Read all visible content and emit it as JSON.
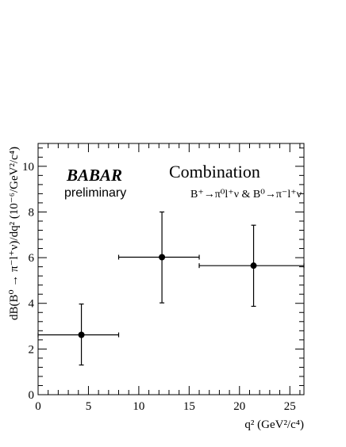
{
  "chart_data": {
    "type": "scatter",
    "logo": "BABAR",
    "subtitle": "preliminary",
    "title": "Combination",
    "process_label": "B⁺→π⁰l⁺ν & B⁰→π⁻l⁺ν",
    "xlabel": "q² (GeV²/c⁴)",
    "ylabel": "dB(B⁰ → π⁻l⁺ν)/dq² (10⁻⁶/GeV²/c⁴)",
    "xlim": [
      0,
      26.4
    ],
    "ylim": [
      0,
      11
    ],
    "x_major_ticks": [
      0,
      5,
      10,
      15,
      20,
      25
    ],
    "x_tick_labels": [
      "0",
      "5",
      "10",
      "15",
      "20",
      "25"
    ],
    "y_major_ticks": [
      0,
      2,
      4,
      6,
      8,
      10
    ],
    "y_tick_labels": [
      "0",
      "2",
      "4",
      "6",
      "8",
      "10"
    ],
    "grid": false,
    "points": [
      {
        "x": 4.3,
        "y": 2.62,
        "x_low": 0,
        "x_high": 8,
        "y_low": 1.3,
        "y_high": 3.97
      },
      {
        "x": 12.3,
        "y": 6.02,
        "x_low": 8,
        "x_high": 16,
        "y_low": 4.02,
        "y_high": 8.0
      },
      {
        "x": 21.4,
        "y": 5.65,
        "x_low": 16,
        "x_high": 26.4,
        "y_low": 3.87,
        "y_high": 7.42
      }
    ]
  }
}
